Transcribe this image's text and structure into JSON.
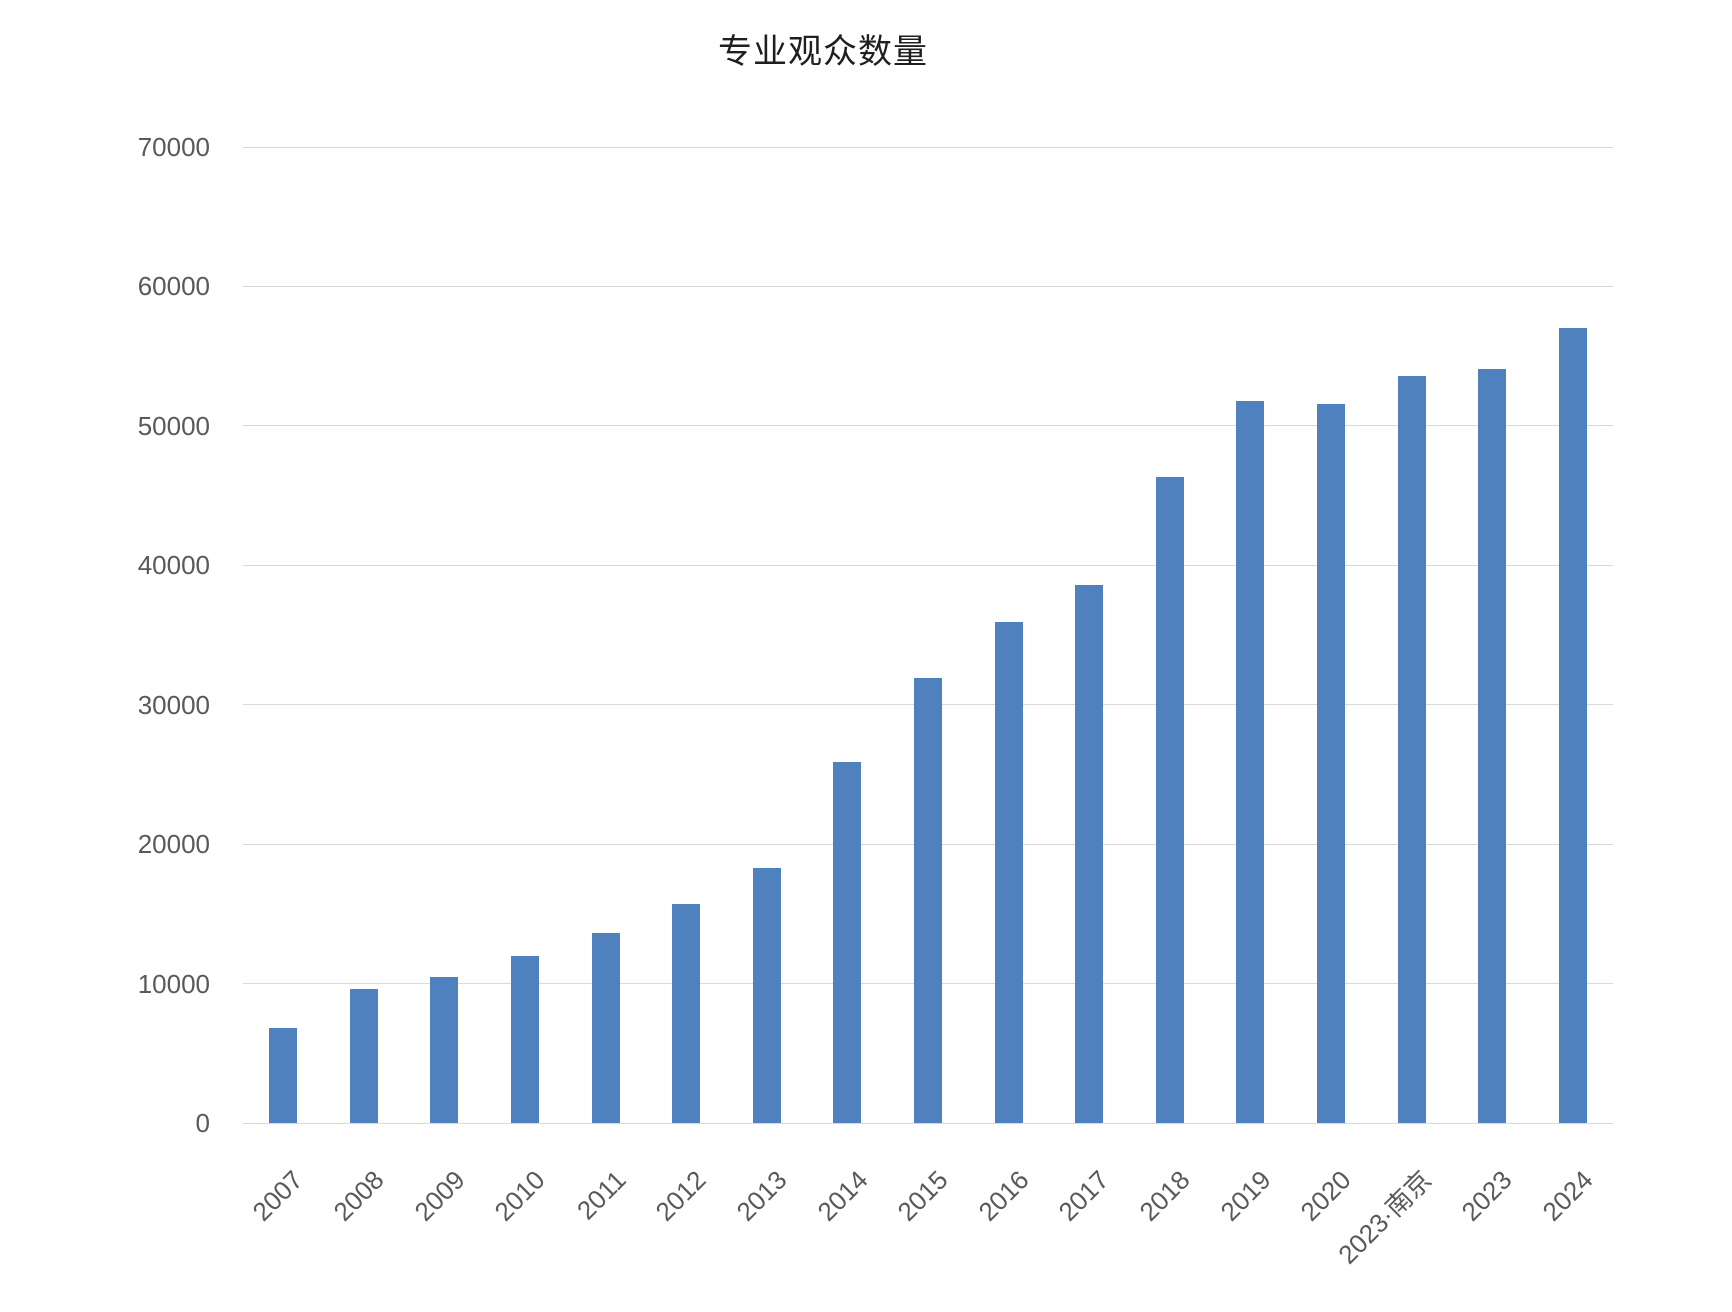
{
  "page": {
    "background": "#ffffff"
  },
  "colors": {
    "bar": "#4e81bd",
    "grid": "#d9d9d9",
    "axis_text": "#595959",
    "title_text": "#1f1f1f"
  },
  "chart_data": {
    "type": "bar",
    "title": "专业观众数量",
    "categories": [
      "2007",
      "2008",
      "2009",
      "2010",
      "2011",
      "2012",
      "2013",
      "2014",
      "2015",
      "2016",
      "2017",
      "2018",
      "2019",
      "2020",
      "2023·南京",
      "2023",
      "2024"
    ],
    "values": [
      6800,
      9600,
      10500,
      12000,
      13600,
      15700,
      18300,
      25900,
      31900,
      35900,
      38600,
      46300,
      51800,
      51600,
      53600,
      54100,
      57000
    ],
    "xlabel": "",
    "ylabel": "",
    "ylim": [
      0,
      70000
    ],
    "yticks": [
      0,
      10000,
      20000,
      30000,
      40000,
      50000,
      60000,
      70000
    ],
    "grid": true,
    "legend": false,
    "x_labels_rotation_deg": 45
  }
}
